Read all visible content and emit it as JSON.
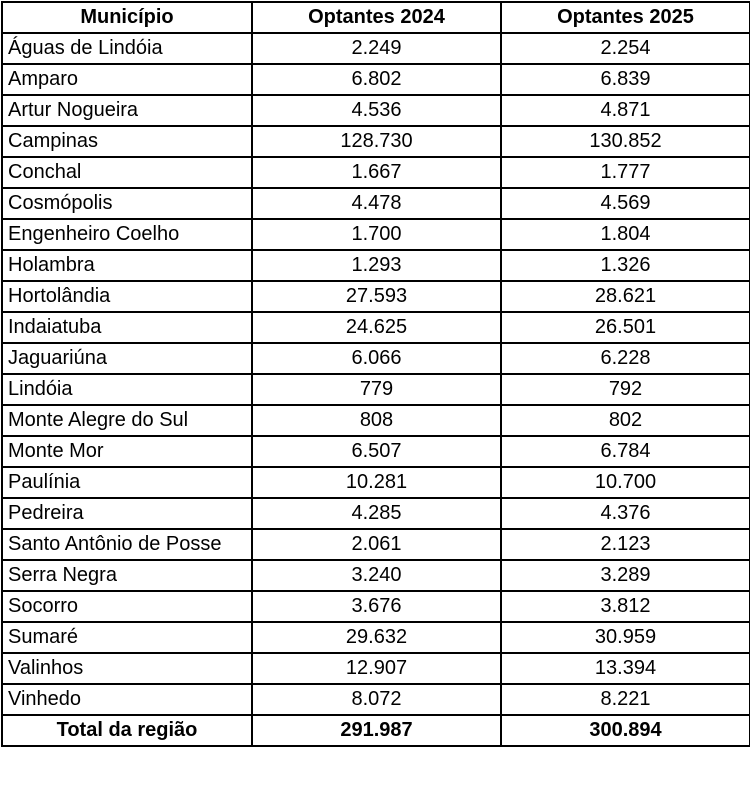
{
  "headers": {
    "municipio": "Município",
    "optantes_2024": "Optantes 2024",
    "optantes_2025": "Optantes 2025"
  },
  "rows": [
    {
      "municipio": "Águas de Lindóia",
      "optantes_2024": "2.249",
      "optantes_2025": "2.254"
    },
    {
      "municipio": "Amparo",
      "optantes_2024": "6.802",
      "optantes_2025": "6.839"
    },
    {
      "municipio": "Artur Nogueira",
      "optantes_2024": "4.536",
      "optantes_2025": "4.871"
    },
    {
      "municipio": "Campinas",
      "optantes_2024": "128.730",
      "optantes_2025": "130.852"
    },
    {
      "municipio": "Conchal",
      "optantes_2024": "1.667",
      "optantes_2025": "1.777"
    },
    {
      "municipio": "Cosmópolis",
      "optantes_2024": "4.478",
      "optantes_2025": "4.569"
    },
    {
      "municipio": "Engenheiro Coelho",
      "optantes_2024": "1.700",
      "optantes_2025": "1.804"
    },
    {
      "municipio": "Holambra",
      "optantes_2024": "1.293",
      "optantes_2025": "1.326"
    },
    {
      "municipio": "Hortolândia",
      "optantes_2024": "27.593",
      "optantes_2025": "28.621"
    },
    {
      "municipio": "Indaiatuba",
      "optantes_2024": "24.625",
      "optantes_2025": "26.501"
    },
    {
      "municipio": "Jaguariúna",
      "optantes_2024": "6.066",
      "optantes_2025": "6.228"
    },
    {
      "municipio": "Lindóia",
      "optantes_2024": "779",
      "optantes_2025": "792"
    },
    {
      "municipio": "Monte Alegre do Sul",
      "optantes_2024": "808",
      "optantes_2025": "802"
    },
    {
      "municipio": "Monte Mor",
      "optantes_2024": "6.507",
      "optantes_2025": "6.784"
    },
    {
      "municipio": "Paulínia",
      "optantes_2024": "10.281",
      "optantes_2025": "10.700"
    },
    {
      "municipio": "Pedreira",
      "optantes_2024": "4.285",
      "optantes_2025": "4.376"
    },
    {
      "municipio": "Santo Antônio de Posse",
      "optantes_2024": "2.061",
      "optantes_2025": "2.123"
    },
    {
      "municipio": "Serra Negra",
      "optantes_2024": "3.240",
      "optantes_2025": "3.289"
    },
    {
      "municipio": "Socorro",
      "optantes_2024": "3.676",
      "optantes_2025": "3.812"
    },
    {
      "municipio": "Sumaré",
      "optantes_2024": "29.632",
      "optantes_2025": "30.959"
    },
    {
      "municipio": "Valinhos",
      "optantes_2024": "12.907",
      "optantes_2025": "13.394"
    },
    {
      "municipio": "Vinhedo",
      "optantes_2024": "8.072",
      "optantes_2025": "8.221"
    }
  ],
  "total": {
    "label": "Total da região",
    "optantes_2024": "291.987",
    "optantes_2025": "300.894"
  }
}
